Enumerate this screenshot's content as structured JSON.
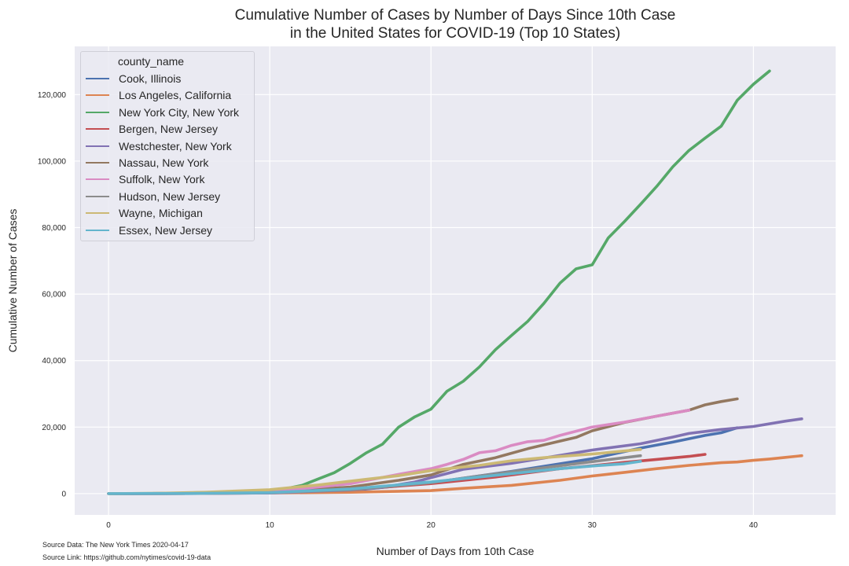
{
  "source": {
    "data_line": "Source Data: The New York Times 2020-04-17",
    "link_line": "Source Link: https://github.com/nytimes/covid-19-data"
  },
  "chart_data": {
    "type": "line",
    "title": [
      "Cumulative Number of Cases by Number of Days Since 10th Case",
      "in the United States for COVID-19 (Top 10 States)"
    ],
    "xlabel": "Number of Days from 10th Case",
    "ylabel": "Cumulative Number of Cases",
    "xlim": [
      -2.1,
      45.1
    ],
    "ylim": [
      -6400,
      134500
    ],
    "x_ticks": [
      0,
      10,
      20,
      30,
      40
    ],
    "y_ticks": [
      0,
      20000,
      40000,
      60000,
      80000,
      100000,
      120000
    ],
    "y_tick_labels": [
      "0",
      "20,000",
      "40,000",
      "60,000",
      "80,000",
      "100,000",
      "120,000"
    ],
    "grid": true,
    "legend": {
      "title": "county_name",
      "placement": "top-left"
    },
    "series": [
      {
        "name": "Cook, Illinois",
        "color": "#4c72b0",
        "points": [
          [
            0,
            10
          ],
          [
            5,
            30
          ],
          [
            10,
            200
          ],
          [
            15,
            900
          ],
          [
            20,
            3300
          ],
          [
            25,
            6700
          ],
          [
            30,
            10500
          ],
          [
            33,
            13700
          ],
          [
            35,
            15500
          ],
          [
            37,
            17500
          ],
          [
            38,
            18300
          ],
          [
            39,
            19800
          ]
        ]
      },
      {
        "name": "Los Angeles, California",
        "color": "#dd8452",
        "points": [
          [
            0,
            10
          ],
          [
            5,
            50
          ],
          [
            10,
            200
          ],
          [
            15,
            400
          ],
          [
            20,
            900
          ],
          [
            22,
            1600
          ],
          [
            25,
            2500
          ],
          [
            28,
            4000
          ],
          [
            30,
            5300
          ],
          [
            32,
            6400
          ],
          [
            34,
            7500
          ],
          [
            36,
            8500
          ],
          [
            38,
            9300
          ],
          [
            39,
            9500
          ],
          [
            40,
            10000
          ],
          [
            41,
            10400
          ],
          [
            42,
            10900
          ],
          [
            43,
            11400
          ]
        ]
      },
      {
        "name": "New York City, New York",
        "color": "#55a868",
        "points": [
          [
            0,
            10
          ],
          [
            4,
            100
          ],
          [
            8,
            600
          ],
          [
            10,
            1100
          ],
          [
            11,
            1500
          ],
          [
            12,
            2500
          ],
          [
            13,
            4400
          ],
          [
            14,
            6300
          ],
          [
            15,
            9100
          ],
          [
            16,
            12300
          ],
          [
            17,
            14900
          ],
          [
            18,
            20000
          ],
          [
            19,
            23100
          ],
          [
            20,
            25400
          ],
          [
            21,
            30800
          ],
          [
            22,
            33800
          ],
          [
            23,
            38100
          ],
          [
            24,
            43300
          ],
          [
            25,
            47600
          ],
          [
            26,
            51800
          ],
          [
            27,
            57200
          ],
          [
            28,
            63300
          ],
          [
            29,
            67600
          ],
          [
            30,
            68800
          ],
          [
            31,
            76900
          ],
          [
            32,
            81800
          ],
          [
            33,
            87000
          ],
          [
            34,
            92400
          ],
          [
            35,
            98300
          ],
          [
            36,
            103200
          ],
          [
            37,
            106900
          ],
          [
            38,
            110500
          ],
          [
            39,
            118300
          ],
          [
            40,
            123100
          ],
          [
            41,
            127100
          ]
        ]
      },
      {
        "name": "Bergen, New Jersey",
        "color": "#c44e52",
        "points": [
          [
            0,
            10
          ],
          [
            5,
            50
          ],
          [
            10,
            300
          ],
          [
            15,
            1200
          ],
          [
            20,
            3000
          ],
          [
            24,
            5000
          ],
          [
            28,
            7500
          ],
          [
            30,
            8400
          ],
          [
            32,
            9400
          ],
          [
            34,
            10300
          ],
          [
            36,
            11200
          ],
          [
            37,
            11800
          ]
        ]
      },
      {
        "name": "Westchester, New York",
        "color": "#8172b3",
        "points": [
          [
            0,
            10
          ],
          [
            5,
            50
          ],
          [
            10,
            200
          ],
          [
            15,
            1100
          ],
          [
            17,
            1900
          ],
          [
            19,
            3500
          ],
          [
            20,
            4800
          ],
          [
            22,
            7300
          ],
          [
            25,
            9100
          ],
          [
            28,
            11500
          ],
          [
            30,
            13100
          ],
          [
            33,
            15000
          ],
          [
            35,
            17000
          ],
          [
            36,
            18100
          ],
          [
            38,
            19300
          ],
          [
            40,
            20200
          ],
          [
            42,
            21800
          ],
          [
            43,
            22500
          ]
        ]
      },
      {
        "name": "Nassau, New York",
        "color": "#937860",
        "points": [
          [
            0,
            10
          ],
          [
            5,
            50
          ],
          [
            10,
            400
          ],
          [
            15,
            2000
          ],
          [
            18,
            4000
          ],
          [
            20,
            5600
          ],
          [
            22,
            8800
          ],
          [
            24,
            10800
          ],
          [
            26,
            13500
          ],
          [
            28,
            15800
          ],
          [
            29,
            16900
          ],
          [
            30,
            18900
          ],
          [
            32,
            21400
          ],
          [
            34,
            23300
          ],
          [
            36,
            25100
          ],
          [
            37,
            26700
          ],
          [
            38,
            27700
          ],
          [
            39,
            28500
          ]
        ]
      },
      {
        "name": "Suffolk, New York",
        "color": "#da8bc3",
        "points": [
          [
            0,
            10
          ],
          [
            5,
            50
          ],
          [
            10,
            500
          ],
          [
            15,
            3000
          ],
          [
            18,
            5800
          ],
          [
            20,
            7500
          ],
          [
            21,
            8800
          ],
          [
            22,
            10300
          ],
          [
            23,
            12300
          ],
          [
            24,
            12900
          ],
          [
            25,
            14500
          ],
          [
            26,
            15600
          ],
          [
            27,
            16000
          ],
          [
            28,
            17500
          ],
          [
            30,
            20000
          ],
          [
            32,
            21500
          ],
          [
            34,
            23300
          ],
          [
            36,
            25100
          ]
        ]
      },
      {
        "name": "Hudson, New Jersey",
        "color": "#8c8c8c",
        "points": [
          [
            0,
            10
          ],
          [
            5,
            50
          ],
          [
            10,
            300
          ],
          [
            15,
            1200
          ],
          [
            20,
            3300
          ],
          [
            23,
            5300
          ],
          [
            26,
            7200
          ],
          [
            30,
            9600
          ],
          [
            33,
            11400
          ]
        ]
      },
      {
        "name": "Wayne, Michigan",
        "color": "#ccb974",
        "points": [
          [
            0,
            10
          ],
          [
            3,
            100
          ],
          [
            6,
            400
          ],
          [
            10,
            1200
          ],
          [
            13,
            2600
          ],
          [
            16,
            4300
          ],
          [
            18,
            5400
          ],
          [
            20,
            6900
          ],
          [
            22,
            8000
          ],
          [
            23,
            8500
          ],
          [
            25,
            9900
          ],
          [
            27,
            10800
          ],
          [
            30,
            11900
          ],
          [
            33,
            13300
          ]
        ]
      },
      {
        "name": "Essex, New Jersey",
        "color": "#64b5cd",
        "points": [
          [
            0,
            10
          ],
          [
            5,
            50
          ],
          [
            10,
            300
          ],
          [
            15,
            1400
          ],
          [
            20,
            3500
          ],
          [
            23,
            5000
          ],
          [
            25,
            6000
          ],
          [
            28,
            7500
          ],
          [
            30,
            8300
          ],
          [
            32,
            9000
          ],
          [
            33,
            9700
          ]
        ]
      }
    ]
  }
}
